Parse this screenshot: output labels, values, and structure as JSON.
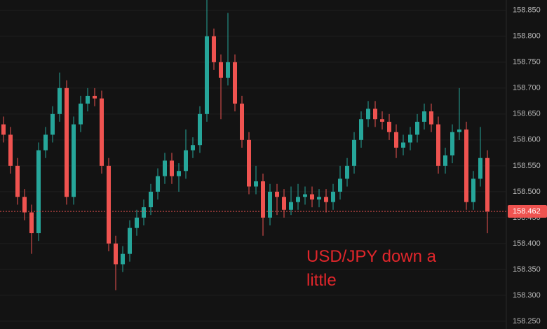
{
  "chart_data": {
    "type": "candlestick",
    "up_color": "#26a69a",
    "down_color": "#ef5350",
    "grid": true,
    "open": [
      158.63,
      158.61,
      158.55,
      158.49,
      158.46,
      158.42,
      158.58,
      158.61,
      158.65,
      158.7,
      158.49,
      158.63,
      158.67,
      158.685,
      158.68,
      158.55,
      158.4,
      158.36,
      158.38,
      158.43,
      158.45,
      158.47,
      158.5,
      158.53,
      158.56,
      158.53,
      158.54,
      158.58,
      158.59,
      158.65,
      158.8,
      158.75,
      158.72,
      158.75,
      158.67,
      158.6,
      158.51,
      158.52,
      158.45,
      158.5,
      158.49,
      158.465,
      158.48,
      158.49,
      158.495,
      158.485,
      158.49,
      158.48,
      158.5,
      158.525,
      158.55,
      158.6,
      158.64,
      158.66,
      158.64,
      158.635,
      158.615,
      158.585,
      158.595,
      158.61,
      158.635,
      158.655,
      158.63,
      158.55,
      158.57,
      158.615,
      158.62,
      158.48,
      158.525,
      158.565
    ],
    "high": [
      158.645,
      158.625,
      158.565,
      158.505,
      158.475,
      158.595,
      158.625,
      158.665,
      158.73,
      158.715,
      158.645,
      158.685,
      158.7,
      158.7,
      158.695,
      158.565,
      158.415,
      158.395,
      158.445,
      158.465,
      158.485,
      158.515,
      158.545,
      158.575,
      158.575,
      158.555,
      158.62,
      158.605,
      158.665,
      158.87,
      158.815,
      158.765,
      158.845,
      158.765,
      158.685,
      158.615,
      158.55,
      158.535,
      158.515,
      158.515,
      158.505,
      158.51,
      158.515,
      158.51,
      158.51,
      158.505,
      158.505,
      158.515,
      158.55,
      158.565,
      158.615,
      158.655,
      158.675,
      158.675,
      158.655,
      158.65,
      158.63,
      158.61,
      158.625,
      158.65,
      158.67,
      158.67,
      158.645,
      158.585,
      158.63,
      158.7,
      158.635,
      158.54,
      158.625,
      158.58
    ],
    "low": [
      158.595,
      158.535,
      158.475,
      158.445,
      158.38,
      158.405,
      158.565,
      158.595,
      158.635,
      158.475,
      158.475,
      158.615,
      158.655,
      158.665,
      158.535,
      158.385,
      158.31,
      158.345,
      158.365,
      158.415,
      158.435,
      158.455,
      158.485,
      158.515,
      158.515,
      158.5,
      158.525,
      158.565,
      158.575,
      158.635,
      158.735,
      158.64,
      158.705,
      158.655,
      158.585,
      158.495,
      158.495,
      158.415,
      158.435,
      158.455,
      158.45,
      158.455,
      158.465,
      158.475,
      158.47,
      158.47,
      158.46,
      158.465,
      158.485,
      158.51,
      158.535,
      158.585,
      158.625,
      158.625,
      158.62,
      158.6,
      158.565,
      158.57,
      158.58,
      158.595,
      158.62,
      158.615,
      158.535,
      158.535,
      158.555,
      158.6,
      158.465,
      158.465,
      158.51,
      158.42
    ],
    "close": [
      158.61,
      158.55,
      158.49,
      158.46,
      158.42,
      158.58,
      158.61,
      158.65,
      158.7,
      158.49,
      158.63,
      158.67,
      158.685,
      158.68,
      158.55,
      158.4,
      158.36,
      158.38,
      158.43,
      158.45,
      158.47,
      158.5,
      158.53,
      158.56,
      158.53,
      158.54,
      158.58,
      158.59,
      158.65,
      158.8,
      158.75,
      158.72,
      158.75,
      158.67,
      158.6,
      158.51,
      158.52,
      158.45,
      158.5,
      158.49,
      158.465,
      158.48,
      158.49,
      158.495,
      158.485,
      158.49,
      158.48,
      158.5,
      158.525,
      158.55,
      158.6,
      158.64,
      158.66,
      158.64,
      158.635,
      158.615,
      158.585,
      158.595,
      158.61,
      158.635,
      158.655,
      158.63,
      158.55,
      158.57,
      158.615,
      158.62,
      158.48,
      158.525,
      158.565,
      158.462
    ],
    "last_price": 158.462,
    "ylim": [
      158.235,
      158.87
    ],
    "yticks": [
      {
        "value": 158.25,
        "label": "158.250"
      },
      {
        "value": 158.3,
        "label": "158.300"
      },
      {
        "value": 158.35,
        "label": "158.350"
      },
      {
        "value": 158.4,
        "label": "158.400"
      },
      {
        "value": 158.45,
        "label": "158.450"
      },
      {
        "value": 158.5,
        "label": "158.500"
      },
      {
        "value": 158.55,
        "label": "158.550"
      },
      {
        "value": 158.6,
        "label": "158.600"
      },
      {
        "value": 158.65,
        "label": "158.650"
      },
      {
        "value": 158.7,
        "label": "158.700"
      },
      {
        "value": 158.75,
        "label": "158.750"
      },
      {
        "value": 158.8,
        "label": "158.800"
      },
      {
        "value": 158.85,
        "label": "158.850"
      }
    ],
    "annotation": "USD/JPY down a little"
  }
}
